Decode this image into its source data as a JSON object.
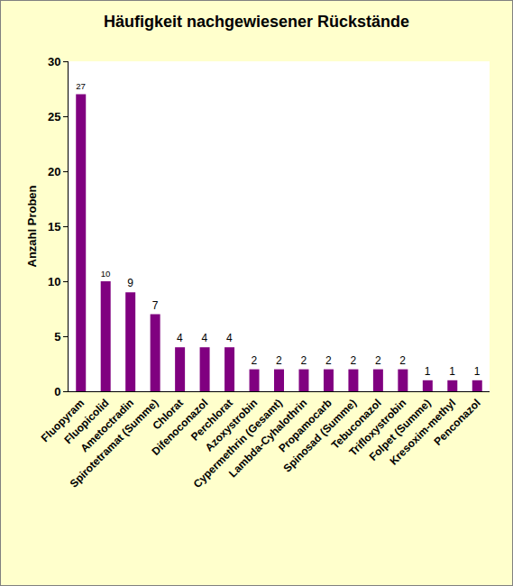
{
  "chart_data": {
    "type": "bar",
    "title": "Häufigkeit nachgewiesener Rückstände",
    "y_label": "Anzahl Proben",
    "categories": [
      "Fluopyram",
      "Fluopicolid",
      "Ametoctradin",
      "Spirotetramat (Summe)",
      "Chlorat",
      "Difenoconazol",
      "Perchlorat",
      "Azoxystrobin",
      "Cypermethrin (Gesamt)",
      "Lambda-Cyhalothrin",
      "Propamocarb",
      "Spinosad (Summe)",
      "Tebuconazol",
      "Trifloxystrobin",
      "Folpet (Summe)",
      "Kresoxim-methyl",
      "Penconazol"
    ],
    "values": [
      27,
      10,
      9,
      7,
      4,
      4,
      4,
      2,
      2,
      2,
      2,
      2,
      2,
      2,
      1,
      1,
      1
    ],
    "color": "#800080",
    "ylim": [
      0,
      30
    ],
    "yticks": [
      0,
      5,
      10,
      15,
      20,
      25,
      30
    ],
    "grid": false,
    "data_labels": true
  }
}
